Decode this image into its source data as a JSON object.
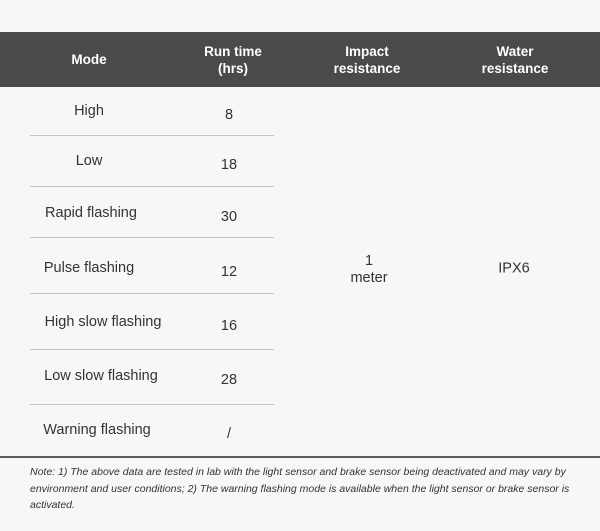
{
  "headers": [
    "Mode",
    "Run time\n(hrs)",
    "Impact\nresistance",
    "Water\nresistance"
  ],
  "rows": [
    {
      "mode": "High",
      "run_time": "8"
    },
    {
      "mode": "Low",
      "run_time": "18"
    },
    {
      "mode": "Rapid flashing",
      "run_time": "30"
    },
    {
      "mode": "Pulse flashing",
      "run_time": "12"
    },
    {
      "mode": "High slow flashing",
      "run_time": "16"
    },
    {
      "mode": "Low slow flashing",
      "run_time": "28"
    },
    {
      "mode": "Warning flashing",
      "run_time": "/"
    }
  ],
  "impact_resistance": "1\nmeter",
  "water_resistance": "IPX6",
  "note": "Note: 1) The above data are tested in lab with the light sensor and brake sensor being deactivated and may vary by environment and user conditions; 2) The warning flashing mode is available when the light sensor or brake sensor is activated."
}
